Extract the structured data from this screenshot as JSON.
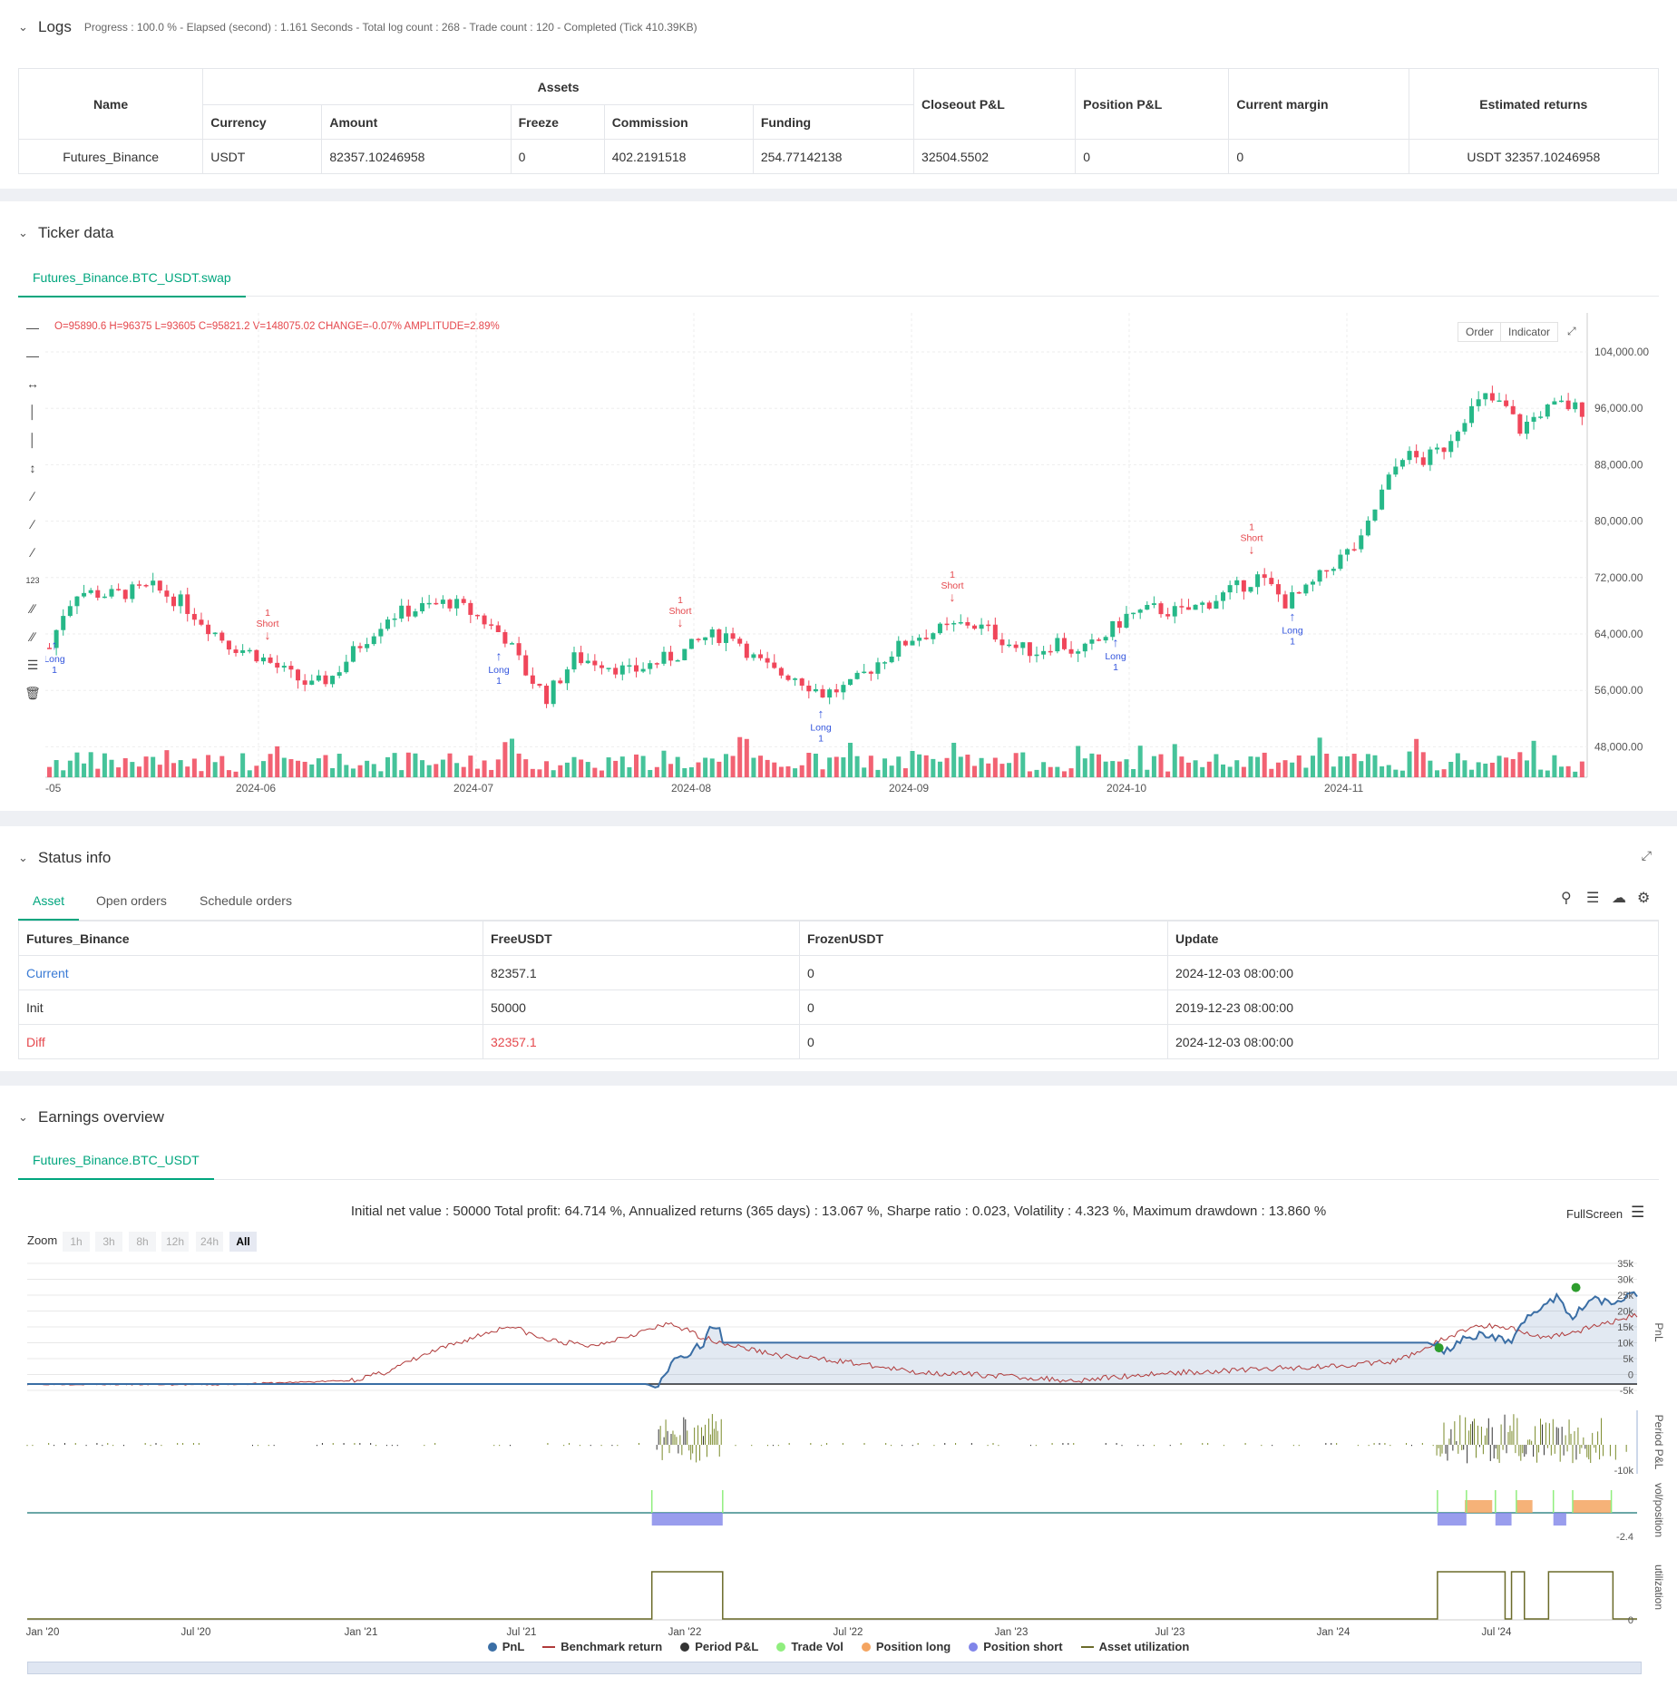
{
  "logs": {
    "title": "Logs",
    "summary": "Progress : 100.0 % - Elapsed (second) : 1.161  Seconds - Total log count : 268 - Trade count : 120 - Completed (Tick 410.39KB)",
    "headers": {
      "name": "Name",
      "assets": "Assets",
      "currency": "Currency",
      "amount": "Amount",
      "freeze": "Freeze",
      "commission": "Commission",
      "funding": "Funding",
      "closeout": "Closeout P&L",
      "position": "Position P&L",
      "margin": "Current margin",
      "returns": "Estimated returns"
    },
    "row": {
      "name": "Futures_Binance",
      "currency": "USDT",
      "amount": "82357.10246958",
      "freeze": "0",
      "commission": "402.2191518",
      "funding": "254.77142138",
      "closeout": "32504.5502",
      "position": "0",
      "margin": "0",
      "returns": "USDT 32357.10246958"
    }
  },
  "ticker": {
    "title": "Ticker data",
    "tab": "Futures_Binance.BTC_USDT.swap",
    "ohlc": "O=95890.6 H=96375 L=93605 C=95821.2 V=148075.02 CHANGE=-0.07% AMPLITUDE=2.89%",
    "order_btn": "Order",
    "indicator_btn": "Indicator",
    "price_ticks": [
      "104,000.00",
      "96,000.00",
      "88,000.00",
      "80,000.00",
      "72,000.00",
      "64,000.00",
      "56,000.00",
      "48,000.00"
    ],
    "date_ticks": [
      "-05",
      "2024-06",
      "2024-07",
      "2024-08",
      "2024-09",
      "2024-10",
      "2024-11"
    ],
    "signals": [
      {
        "label": "Long",
        "qty": "1"
      },
      {
        "label": "Short",
        "qty": "1"
      },
      {
        "label": "Long",
        "qty": "1"
      },
      {
        "label": "Short",
        "qty": "1"
      },
      {
        "label": "Long",
        "qty": "1"
      },
      {
        "label": "Short",
        "qty": "1"
      },
      {
        "label": "Long",
        "qty": "1"
      },
      {
        "label": "Short",
        "qty": "1"
      },
      {
        "label": "Long",
        "qty": "1"
      }
    ],
    "up_color": "#26b888",
    "down_color": "#f0465a"
  },
  "status": {
    "title": "Status info",
    "tabs": [
      "Asset",
      "Open orders",
      "Schedule orders"
    ],
    "headers": [
      "Futures_Binance",
      "FreeUSDT",
      "FrozenUSDT",
      "Update"
    ],
    "rows": [
      {
        "name": "Current",
        "free": "82357.1",
        "frozen": "0",
        "update": "2024-12-03 08:00:00"
      },
      {
        "name": "Init",
        "free": "50000",
        "frozen": "0",
        "update": "2019-12-23 08:00:00"
      },
      {
        "name": "Diff",
        "free": "32357.1",
        "frozen": "0",
        "update": "2024-12-03 08:00:00"
      }
    ]
  },
  "earnings": {
    "title": "Earnings overview",
    "tab": "Futures_Binance.BTC_USDT",
    "summary": "Initial net value : 50000 Total profit: 64.714 %, Annualized returns (365 days) : 13.067 %, Sharpe ratio : 0.023, Volatility : 4.323 %, Maximum drawdown : 13.860 %",
    "fullscreen": "FullScreen",
    "zoom_label": "Zoom",
    "zoom_options": [
      "1h",
      "3h",
      "8h",
      "12h",
      "24h",
      "All"
    ],
    "pnl_ticks": [
      "35k",
      "30k",
      "25k",
      "20k",
      "15k",
      "10k",
      "5k",
      "0",
      "-5k"
    ],
    "period_ticks": [
      "-10k"
    ],
    "pos_ticks": [
      "-2.4"
    ],
    "util_ticks": [
      "0"
    ],
    "axis_labels": {
      "pnl": "PnL",
      "period": "Period P&L",
      "pos": "vol/position",
      "util": "utilization"
    },
    "date_ticks": [
      "Jan '20",
      "Jul '20",
      "Jan '21",
      "Jul '21",
      "Jan '22",
      "Jul '22",
      "Jan '23",
      "Jul '23",
      "Jan '24",
      "Jul '24"
    ],
    "legend": [
      {
        "name": "PnL",
        "color": "#3a6ea5",
        "kind": "dot"
      },
      {
        "name": "Benchmark return",
        "color": "#b03a3a",
        "kind": "line"
      },
      {
        "name": "Period P&L",
        "color": "#333333",
        "kind": "dot"
      },
      {
        "name": "Trade Vol",
        "color": "#90ee7e",
        "kind": "dot"
      },
      {
        "name": "Position long",
        "color": "#f4a460",
        "kind": "dot"
      },
      {
        "name": "Position short",
        "color": "#8085e9",
        "kind": "dot"
      },
      {
        "name": "Asset utilization",
        "color": "#6b6b2a",
        "kind": "line"
      }
    ]
  }
}
